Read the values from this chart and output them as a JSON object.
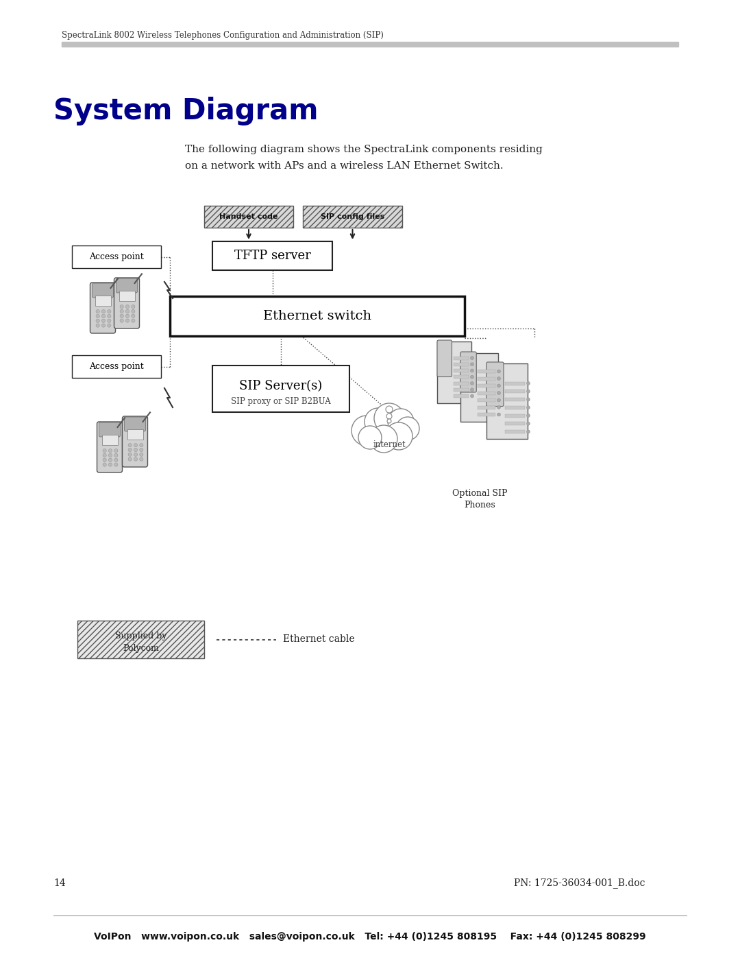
{
  "header_text": "SpectraLink 8002 Wireless Telephones Configuration and Administration (SIP)",
  "title": "System Diagram",
  "title_color": "#00008B",
  "description_line1": "The following diagram shows the SpectraLink components residing",
  "description_line2": "on a network with APs and a wireless LAN Ethernet Switch.",
  "footer_left_page": "14",
  "footer_right_pn": "PN: 1725-36034-001_B.doc",
  "footer_bottom": "VoIPon   www.voipon.co.uk   sales@voipon.co.uk   Tel: +44 (0)1245 808195    Fax: +44 (0)1245 808299",
  "bg_color": "#ffffff",
  "header_bar_color": "#c0c0c0"
}
